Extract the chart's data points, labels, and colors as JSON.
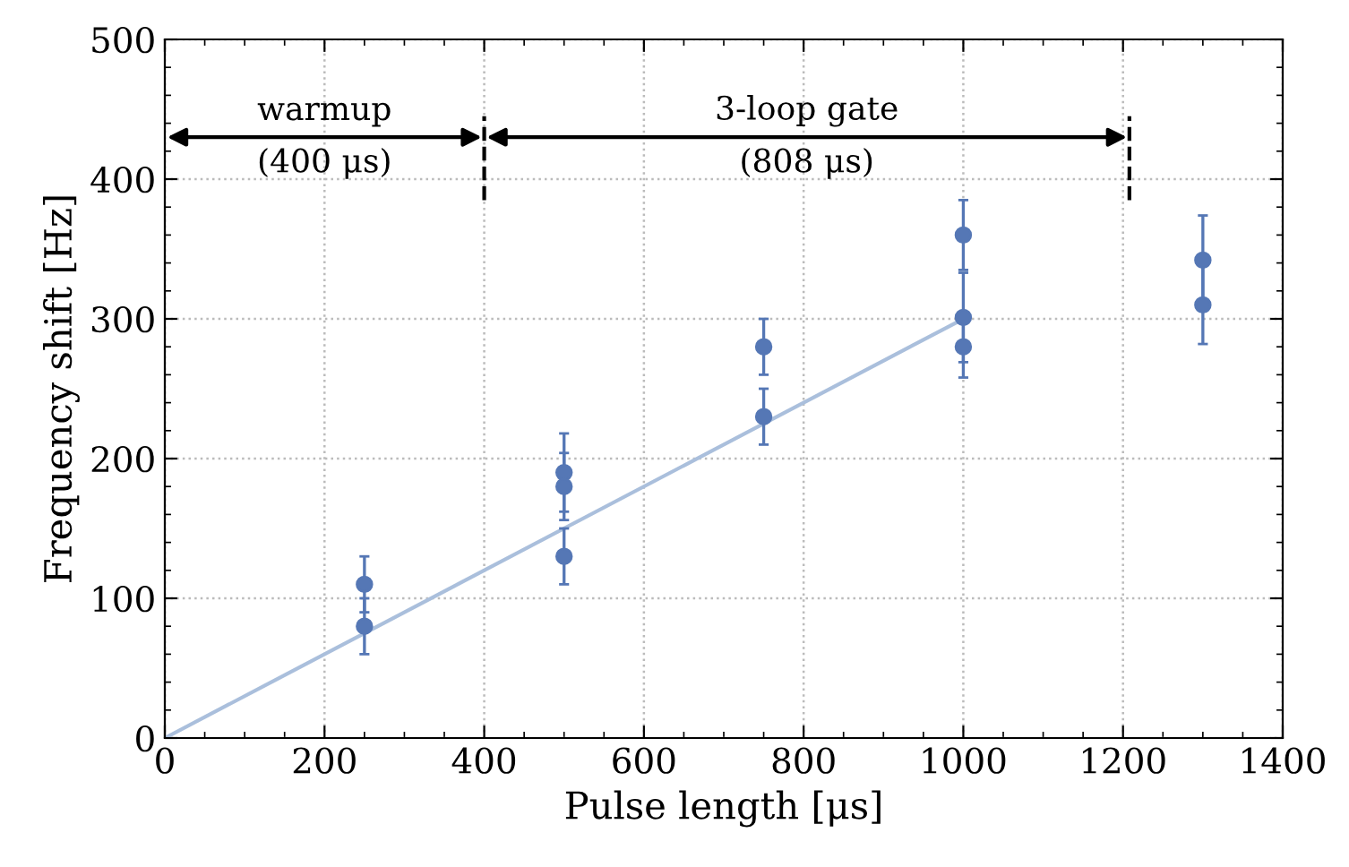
{
  "chart_data": {
    "type": "scatter",
    "xlabel": "Pulse length [μs]",
    "ylabel": "Frequency shift [Hz]",
    "xlim": [
      0,
      1400
    ],
    "ylim": [
      0,
      500
    ],
    "xticks": [
      0,
      200,
      400,
      600,
      800,
      1000,
      1200,
      1400
    ],
    "yticks": [
      0,
      100,
      200,
      300,
      400,
      500
    ],
    "grid": true,
    "series": [
      {
        "type": "line",
        "color": "#aabfdc",
        "x": [
          0,
          1000
        ],
        "values": [
          0,
          300
        ]
      },
      {
        "marker": "circle",
        "color": "#5577b5",
        "x": [
          250,
          250,
          500,
          500,
          500,
          750,
          750,
          1000,
          1000,
          1000,
          1300,
          1300
        ],
        "values": [
          110,
          80,
          190,
          180,
          130,
          280,
          230,
          360,
          301,
          280,
          342,
          310
        ],
        "errors": [
          20,
          20,
          28,
          24,
          20,
          20,
          20,
          25,
          32,
          22,
          32,
          28
        ]
      }
    ],
    "annotations": [
      "warmup\n(400 μs)",
      "3-loop gate\n(808 μs)"
    ],
    "ref_lines": [
      {
        "axis": "x",
        "value": 400,
        "color": "#000000",
        "line_style": "dashed"
      },
      {
        "axis": "x",
        "value": 1208,
        "color": "#000000",
        "line_style": "dashed"
      }
    ]
  }
}
